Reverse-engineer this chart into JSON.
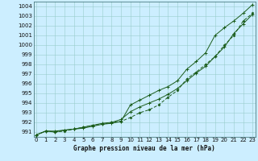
{
  "title": "Graphe pression niveau de la mer (hPa)",
  "xlim": [
    -0.5,
    23
  ],
  "ylim": [
    990.5,
    1004.5
  ],
  "yticks": [
    991,
    992,
    993,
    994,
    995,
    996,
    997,
    998,
    999,
    1000,
    1001,
    1002,
    1003,
    1004
  ],
  "xticks": [
    0,
    1,
    2,
    3,
    4,
    5,
    6,
    7,
    8,
    9,
    10,
    11,
    12,
    13,
    14,
    15,
    16,
    17,
    18,
    19,
    20,
    21,
    22,
    23
  ],
  "bg_color": "#cceeff",
  "grid_color": "#99cccc",
  "line_color": "#1a5c1a",
  "line1": [
    990.7,
    991.1,
    991.1,
    991.2,
    991.3,
    991.4,
    991.6,
    991.8,
    991.9,
    992.1,
    993.8,
    994.3,
    994.8,
    995.3,
    995.7,
    996.3,
    997.5,
    998.3,
    999.2,
    1001.0,
    1001.8,
    1002.5,
    1003.3,
    1004.2
  ],
  "line2": [
    990.7,
    991.1,
    991.0,
    991.1,
    991.3,
    991.5,
    991.7,
    991.8,
    992.0,
    992.1,
    992.5,
    993.0,
    993.3,
    993.8,
    994.6,
    995.3,
    996.5,
    997.2,
    998.0,
    998.8,
    1000.0,
    1001.0,
    1002.5,
    1003.3
  ],
  "line3": [
    990.7,
    991.1,
    991.0,
    991.2,
    991.3,
    991.5,
    991.7,
    991.9,
    992.0,
    992.3,
    993.1,
    993.6,
    994.0,
    994.4,
    994.9,
    995.5,
    996.3,
    997.1,
    997.8,
    998.8,
    999.8,
    1001.2,
    1002.2,
    1003.2
  ]
}
